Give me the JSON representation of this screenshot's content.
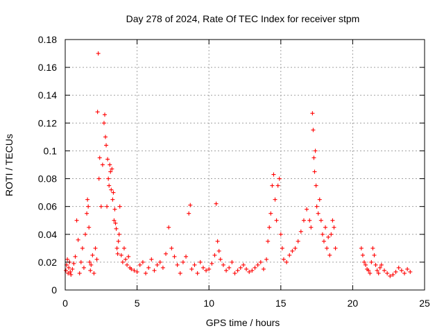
{
  "chart_data": {
    "type": "scatter",
    "title": "Day 278 of 2024, Rate Of TEC Index for receiver stpm",
    "xlabel": "GPS time / hours",
    "ylabel": "ROTI / TECUs",
    "xlim": [
      0,
      25
    ],
    "ylim": [
      0,
      0.18
    ],
    "xticks": [
      0,
      5,
      10,
      15,
      20,
      25
    ],
    "yticks": [
      0,
      0.02,
      0.04,
      0.06,
      0.08,
      0.1,
      0.12,
      0.14,
      0.16,
      0.18
    ],
    "xtick_labels": [
      "0",
      "5",
      "10",
      "15",
      "20",
      "25"
    ],
    "ytick_labels": [
      "0",
      "0.02",
      "0.04",
      "0.06",
      "0.08",
      "0.1",
      "0.12",
      "0.14",
      "0.16",
      "0.18"
    ],
    "grid": true,
    "marker": "+",
    "marker_color": "#ff0000",
    "series": [
      {
        "x": [
          0.05,
          0.1,
          0.15,
          0.2,
          0.25,
          0.3,
          0.35,
          0.4,
          0.5,
          0.6,
          0.7,
          0.8,
          0.9,
          1.0,
          1.1,
          1.2,
          1.3,
          1.4,
          1.5,
          1.55,
          1.6,
          1.65,
          1.7,
          1.75,
          1.8,
          1.9,
          2.0,
          2.1,
          2.2,
          2.25,
          2.3,
          2.35,
          2.4,
          2.5,
          2.6,
          2.7,
          2.75,
          2.8,
          2.85,
          2.9,
          2.95,
          3.0,
          3.05,
          3.1,
          3.15,
          3.2,
          3.25,
          3.3,
          3.35,
          3.4,
          3.45,
          3.5,
          3.55,
          3.6,
          3.65,
          3.7,
          3.75,
          3.8,
          3.9,
          4.0,
          4.1,
          4.2,
          4.3,
          4.4,
          4.5,
          4.6,
          4.8,
          5.0,
          5.2,
          5.4,
          5.6,
          5.8,
          6.0,
          6.2,
          6.4,
          6.6,
          6.8,
          7.0,
          7.2,
          7.4,
          7.6,
          7.8,
          8.0,
          8.2,
          8.4,
          8.6,
          8.7,
          8.8,
          9.0,
          9.2,
          9.4,
          9.6,
          9.8,
          10.0,
          10.2,
          10.4,
          10.5,
          10.6,
          10.7,
          10.8,
          11.0,
          11.2,
          11.4,
          11.6,
          11.8,
          12.0,
          12.2,
          12.4,
          12.6,
          12.8,
          13.0,
          13.2,
          13.4,
          13.6,
          13.8,
          14.0,
          14.1,
          14.2,
          14.3,
          14.4,
          14.5,
          14.6,
          14.7,
          14.8,
          14.9,
          15.0,
          15.1,
          15.2,
          15.4,
          15.6,
          15.8,
          16.0,
          16.2,
          16.4,
          16.6,
          16.8,
          17.0,
          17.1,
          17.2,
          17.25,
          17.3,
          17.35,
          17.4,
          17.45,
          17.5,
          17.6,
          17.7,
          17.8,
          17.9,
          18.0,
          18.1,
          18.2,
          18.3,
          18.4,
          18.5,
          18.6,
          18.7,
          18.8,
          20.6,
          20.7,
          20.8,
          20.9,
          21.0,
          21.1,
          21.2,
          21.3,
          21.4,
          21.5,
          21.6,
          21.7,
          21.8,
          21.9,
          22.0,
          22.2,
          22.4,
          22.6,
          22.8,
          23.0,
          23.2,
          23.4,
          23.6,
          23.8,
          24.0
        ],
        "y": [
          0.014,
          0.018,
          0.022,
          0.012,
          0.016,
          0.02,
          0.013,
          0.011,
          0.015,
          0.019,
          0.024,
          0.05,
          0.036,
          0.012,
          0.02,
          0.03,
          0.016,
          0.04,
          0.055,
          0.065,
          0.06,
          0.045,
          0.02,
          0.014,
          0.018,
          0.025,
          0.012,
          0.03,
          0.022,
          0.128,
          0.17,
          0.08,
          0.095,
          0.06,
          0.09,
          0.12,
          0.126,
          0.11,
          0.104,
          0.06,
          0.094,
          0.08,
          0.075,
          0.09,
          0.085,
          0.072,
          0.087,
          0.065,
          0.07,
          0.05,
          0.058,
          0.048,
          0.044,
          0.03,
          0.026,
          0.035,
          0.04,
          0.06,
          0.025,
          0.02,
          0.03,
          0.022,
          0.018,
          0.024,
          0.016,
          0.015,
          0.014,
          0.013,
          0.018,
          0.02,
          0.012,
          0.016,
          0.022,
          0.014,
          0.018,
          0.02,
          0.016,
          0.026,
          0.045,
          0.03,
          0.024,
          0.018,
          0.012,
          0.02,
          0.024,
          0.055,
          0.061,
          0.015,
          0.018,
          0.012,
          0.02,
          0.016,
          0.014,
          0.015,
          0.019,
          0.025,
          0.062,
          0.035,
          0.028,
          0.022,
          0.018,
          0.014,
          0.016,
          0.02,
          0.012,
          0.014,
          0.016,
          0.018,
          0.015,
          0.013,
          0.014,
          0.016,
          0.018,
          0.02,
          0.015,
          0.022,
          0.035,
          0.045,
          0.055,
          0.075,
          0.083,
          0.065,
          0.05,
          0.075,
          0.08,
          0.04,
          0.03,
          0.022,
          0.02,
          0.025,
          0.028,
          0.03,
          0.035,
          0.042,
          0.05,
          0.058,
          0.05,
          0.045,
          0.127,
          0.115,
          0.095,
          0.085,
          0.1,
          0.075,
          0.06,
          0.055,
          0.065,
          0.05,
          0.04,
          0.035,
          0.045,
          0.03,
          0.038,
          0.025,
          0.04,
          0.05,
          0.045,
          0.03,
          0.03,
          0.025,
          0.02,
          0.018,
          0.015,
          0.014,
          0.012,
          0.02,
          0.03,
          0.025,
          0.018,
          0.014,
          0.012,
          0.016,
          0.018,
          0.014,
          0.012,
          0.01,
          0.011,
          0.013,
          0.016,
          0.014,
          0.012,
          0.015,
          0.013
        ]
      }
    ]
  }
}
